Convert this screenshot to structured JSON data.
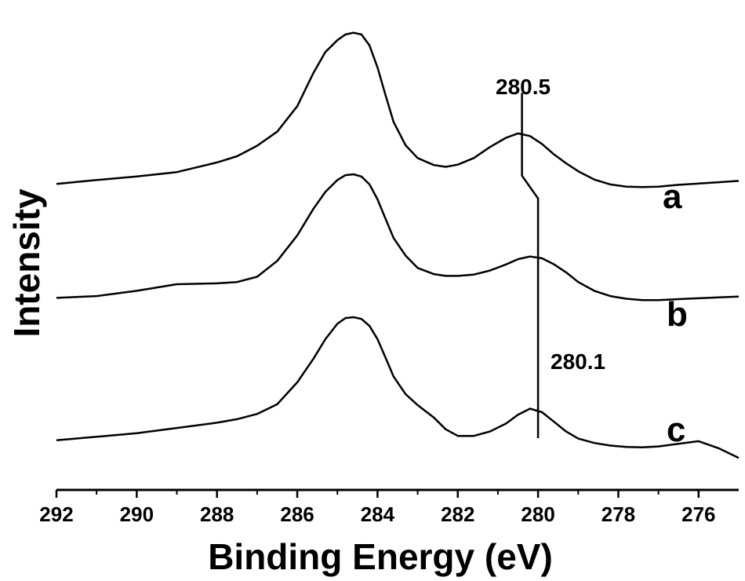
{
  "chart_data": {
    "type": "line",
    "title": "",
    "xlabel": "Binding Energy (eV)",
    "ylabel": "Intensity",
    "xlim": [
      292,
      275
    ],
    "x_reversed": true,
    "ylim": [
      0,
      1
    ],
    "y_ticks_shown": false,
    "x_ticks": [
      292,
      290,
      288,
      286,
      284,
      282,
      280,
      278,
      276
    ],
    "x_tick_labels": [
      "292",
      "290",
      "288",
      "286",
      "284",
      "282",
      "280",
      "278",
      "276"
    ],
    "grid": false,
    "legend": "none",
    "line_color": "#000000",
    "series": [
      {
        "label": "a",
        "points": [
          [
            292.0,
            0.653
          ],
          [
            291.0,
            0.662
          ],
          [
            290.0,
            0.67
          ],
          [
            289.0,
            0.68
          ],
          [
            288.0,
            0.702
          ],
          [
            287.5,
            0.716
          ],
          [
            287.0,
            0.74
          ],
          [
            286.5,
            0.772
          ],
          [
            286.0,
            0.83
          ],
          [
            285.6,
            0.905
          ],
          [
            285.3,
            0.953
          ],
          [
            285.0,
            0.98
          ],
          [
            284.8,
            0.993
          ],
          [
            284.6,
            0.997
          ],
          [
            284.4,
            0.993
          ],
          [
            284.2,
            0.968
          ],
          [
            284.0,
            0.918
          ],
          [
            283.8,
            0.855
          ],
          [
            283.6,
            0.794
          ],
          [
            283.3,
            0.741
          ],
          [
            283.0,
            0.712
          ],
          [
            282.6,
            0.696
          ],
          [
            282.3,
            0.692
          ],
          [
            282.0,
            0.697
          ],
          [
            281.6,
            0.712
          ],
          [
            281.2,
            0.737
          ],
          [
            280.8,
            0.758
          ],
          [
            280.5,
            0.768
          ],
          [
            280.2,
            0.762
          ],
          [
            279.9,
            0.744
          ],
          [
            279.6,
            0.72
          ],
          [
            279.3,
            0.7
          ],
          [
            279.0,
            0.682
          ],
          [
            278.6,
            0.663
          ],
          [
            278.2,
            0.652
          ],
          [
            277.8,
            0.647
          ],
          [
            277.4,
            0.646
          ],
          [
            277.0,
            0.647
          ],
          [
            276.5,
            0.651
          ],
          [
            276.0,
            0.654
          ],
          [
            275.5,
            0.657
          ],
          [
            275.0,
            0.66
          ]
        ]
      },
      {
        "label": "b",
        "points": [
          [
            292.0,
            0.394
          ],
          [
            291.0,
            0.398
          ],
          [
            290.0,
            0.41
          ],
          [
            289.0,
            0.425
          ],
          [
            288.0,
            0.427
          ],
          [
            287.5,
            0.43
          ],
          [
            287.0,
            0.442
          ],
          [
            286.5,
            0.478
          ],
          [
            286.0,
            0.536
          ],
          [
            285.6,
            0.596
          ],
          [
            285.3,
            0.635
          ],
          [
            285.0,
            0.662
          ],
          [
            284.8,
            0.673
          ],
          [
            284.6,
            0.675
          ],
          [
            284.4,
            0.67
          ],
          [
            284.2,
            0.652
          ],
          [
            284.0,
            0.618
          ],
          [
            283.8,
            0.574
          ],
          [
            283.6,
            0.53
          ],
          [
            283.3,
            0.49
          ],
          [
            283.0,
            0.462
          ],
          [
            282.6,
            0.448
          ],
          [
            282.3,
            0.444
          ],
          [
            282.0,
            0.444
          ],
          [
            281.6,
            0.447
          ],
          [
            281.2,
            0.456
          ],
          [
            280.8,
            0.47
          ],
          [
            280.5,
            0.482
          ],
          [
            280.2,
            0.488
          ],
          [
            279.9,
            0.484
          ],
          [
            279.6,
            0.47
          ],
          [
            279.3,
            0.452
          ],
          [
            279.0,
            0.43
          ],
          [
            278.6,
            0.41
          ],
          [
            278.2,
            0.398
          ],
          [
            277.8,
            0.392
          ],
          [
            277.4,
            0.389
          ],
          [
            277.0,
            0.389
          ],
          [
            276.5,
            0.391
          ],
          [
            276.0,
            0.393
          ],
          [
            275.5,
            0.395
          ],
          [
            275.0,
            0.397
          ]
        ]
      },
      {
        "label": "c",
        "points": [
          [
            292.0,
            0.07
          ],
          [
            291.0,
            0.078
          ],
          [
            290.0,
            0.086
          ],
          [
            289.0,
            0.098
          ],
          [
            288.0,
            0.11
          ],
          [
            287.5,
            0.118
          ],
          [
            287.0,
            0.13
          ],
          [
            286.5,
            0.152
          ],
          [
            286.0,
            0.202
          ],
          [
            285.6,
            0.255
          ],
          [
            285.3,
            0.3
          ],
          [
            285.0,
            0.335
          ],
          [
            284.8,
            0.348
          ],
          [
            284.6,
            0.35
          ],
          [
            284.4,
            0.346
          ],
          [
            284.2,
            0.33
          ],
          [
            284.0,
            0.3
          ],
          [
            283.8,
            0.258
          ],
          [
            283.6,
            0.215
          ],
          [
            283.3,
            0.175
          ],
          [
            283.0,
            0.15
          ],
          [
            282.6,
            0.122
          ],
          [
            282.3,
            0.095
          ],
          [
            282.0,
            0.08
          ],
          [
            281.6,
            0.08
          ],
          [
            281.2,
            0.09
          ],
          [
            280.8,
            0.108
          ],
          [
            280.5,
            0.128
          ],
          [
            280.2,
            0.142
          ],
          [
            279.9,
            0.134
          ],
          [
            279.6,
            0.112
          ],
          [
            279.3,
            0.09
          ],
          [
            279.0,
            0.074
          ],
          [
            278.6,
            0.064
          ],
          [
            278.2,
            0.058
          ],
          [
            277.8,
            0.055
          ],
          [
            277.4,
            0.054
          ],
          [
            277.0,
            0.056
          ],
          [
            276.5,
            0.062
          ],
          [
            276.0,
            0.068
          ],
          [
            275.5,
            0.052
          ],
          [
            275.0,
            0.03
          ]
        ]
      }
    ],
    "annotations": [
      {
        "text": "280.5"
      },
      {
        "text": "280.1"
      }
    ],
    "marker_line": [
      [
        280.4,
        0.86
      ],
      [
        280.4,
        0.672
      ],
      [
        280.0,
        0.62
      ],
      [
        280.0,
        0.075
      ]
    ]
  }
}
